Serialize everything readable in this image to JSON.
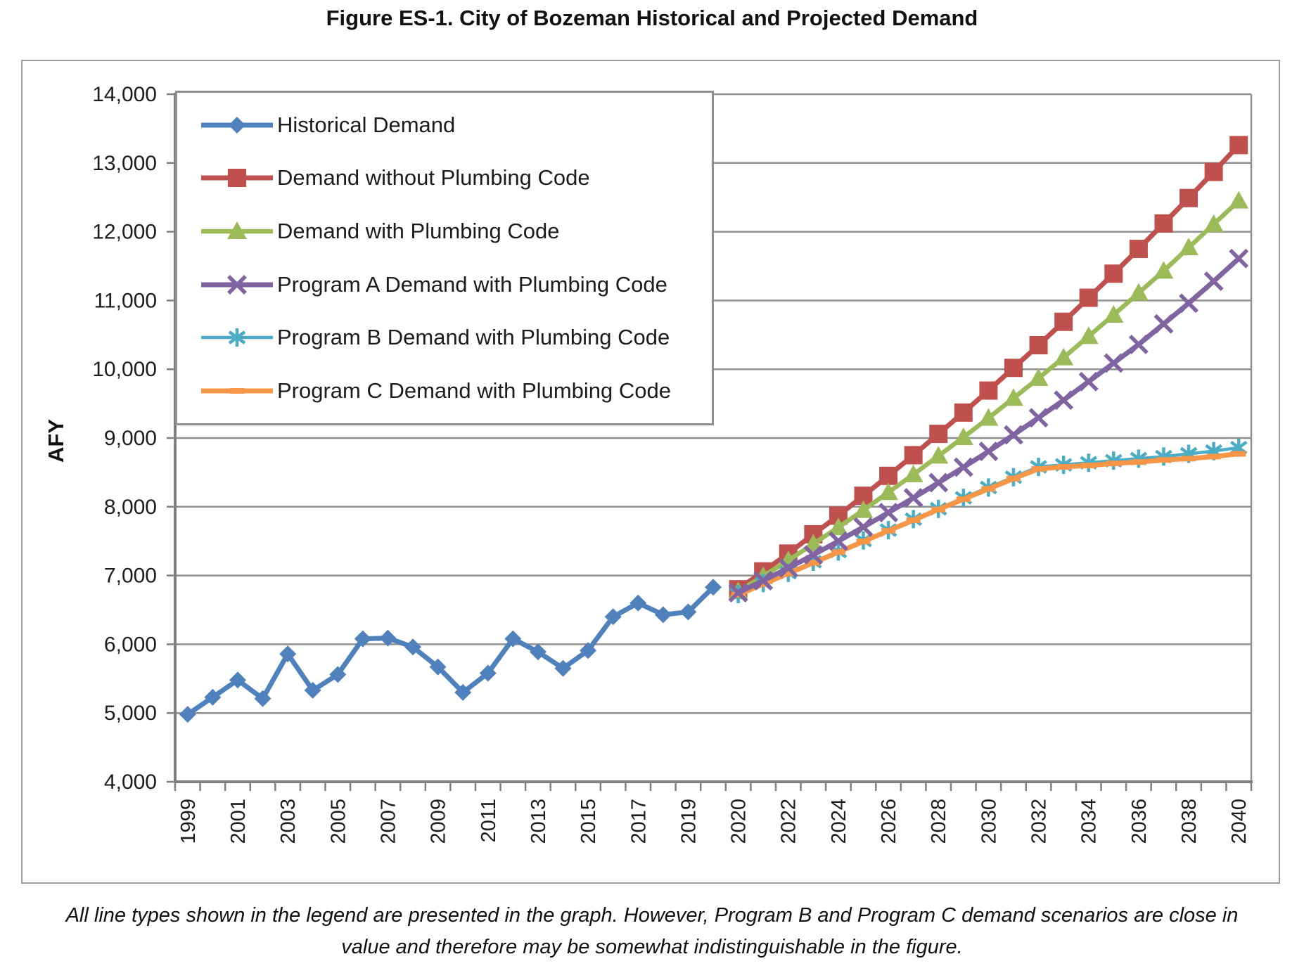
{
  "page": {
    "title": "Figure ES-1. City of Bozeman Historical and Projected Demand",
    "caption": "All line types shown in the legend are presented in the graph. However, Program B and Program C demand scenarios are close in value and therefore may be somewhat indistinguishable in the figure."
  },
  "chart_data": {
    "type": "line",
    "title": "Figure ES-1. City of Bozeman Historical and Projected Demand",
    "xlabel": "",
    "ylabel": "AFY",
    "ylim": [
      4000,
      14000
    ],
    "ytick_step": 1000,
    "y_tick_labels": [
      "4,000",
      "5,000",
      "6,000",
      "7,000",
      "8,000",
      "9,000",
      "10,000",
      "11,000",
      "12,000",
      "13,000",
      "14,000"
    ],
    "x_tick_labels": [
      "1999",
      "2001",
      "2003",
      "2005",
      "2007",
      "2009",
      "2011",
      "2013",
      "2015",
      "2017",
      "2019",
      "2020",
      "2022",
      "2024",
      "2026",
      "2028",
      "2030",
      "2032",
      "2034",
      "2036",
      "2038",
      "2040"
    ],
    "x_total_categories": 43,
    "projection_start_index": 22,
    "grid": "horizontal",
    "legend_position": "top-left",
    "series": [
      {
        "name": "Historical Demand",
        "color": "#4F81BD",
        "marker": "diamond",
        "start_index": 0,
        "years": [
          1999,
          2000,
          2001,
          2002,
          2003,
          2004,
          2005,
          2006,
          2007,
          2008,
          2009,
          2010,
          2011,
          2012,
          2013,
          2014,
          2015,
          2016,
          2017,
          2018,
          2019,
          2020
        ],
        "values": [
          4980,
          5230,
          5480,
          5210,
          5860,
          5330,
          5560,
          6080,
          6090,
          5960,
          5670,
          5300,
          5580,
          6080,
          5890,
          5650,
          5910,
          6400,
          6600,
          6430,
          6470,
          6830
        ]
      },
      {
        "name": "Demand without Plumbing Code",
        "color": "#C0504D",
        "marker": "square",
        "start_index": 22,
        "years": [
          2020,
          2021,
          2022,
          2023,
          2024,
          2025,
          2026,
          2027,
          2028,
          2029,
          2030,
          2031,
          2032,
          2033,
          2034,
          2035,
          2036,
          2037,
          2038,
          2039,
          2040
        ],
        "values": [
          6800,
          7060,
          7320,
          7600,
          7870,
          8160,
          8450,
          8750,
          9060,
          9370,
          9690,
          10020,
          10350,
          10690,
          11040,
          11390,
          11750,
          12120,
          12490,
          12870,
          13260
        ]
      },
      {
        "name": "Demand with Plumbing Code",
        "color": "#9BBB59",
        "marker": "triangle",
        "start_index": 22,
        "years": [
          2020,
          2021,
          2022,
          2023,
          2024,
          2025,
          2026,
          2027,
          2028,
          2029,
          2030,
          2031,
          2032,
          2033,
          2034,
          2035,
          2036,
          2037,
          2038,
          2039,
          2040
        ],
        "values": [
          6770,
          6990,
          7220,
          7460,
          7700,
          7950,
          8210,
          8470,
          8740,
          9010,
          9290,
          9580,
          9870,
          10170,
          10480,
          10790,
          11110,
          11430,
          11770,
          12110,
          12450
        ]
      },
      {
        "name": "Program A Demand with Plumbing Code",
        "color": "#8064A2",
        "marker": "x",
        "start_index": 22,
        "years": [
          2020,
          2021,
          2022,
          2023,
          2024,
          2025,
          2026,
          2027,
          2028,
          2029,
          2030,
          2031,
          2032,
          2033,
          2034,
          2035,
          2036,
          2037,
          2038,
          2039,
          2040
        ],
        "values": [
          6750,
          6925,
          7110,
          7300,
          7500,
          7705,
          7915,
          8130,
          8350,
          8575,
          8805,
          9045,
          9295,
          9550,
          9820,
          10090,
          10360,
          10660,
          10960,
          11280,
          11610
        ]
      },
      {
        "name": "Program B Demand with Plumbing Code",
        "color": "#4BACC6",
        "marker": "asterisk",
        "start_index": 22,
        "years": [
          2020,
          2021,
          2022,
          2023,
          2024,
          2025,
          2026,
          2027,
          2028,
          2029,
          2030,
          2031,
          2032,
          2033,
          2034,
          2035,
          2036,
          2037,
          2038,
          2039,
          2040
        ],
        "values": [
          6730,
          6890,
          7040,
          7200,
          7350,
          7510,
          7660,
          7820,
          7970,
          8130,
          8280,
          8430,
          8580,
          8610,
          8640,
          8670,
          8700,
          8730,
          8770,
          8810,
          8860
        ]
      },
      {
        "name": "Program C Demand with Plumbing Code",
        "color": "#F79646",
        "marker": "dash",
        "start_index": 22,
        "years": [
          2020,
          2021,
          2022,
          2023,
          2024,
          2025,
          2026,
          2027,
          2028,
          2029,
          2030,
          2031,
          2032,
          2033,
          2034,
          2035,
          2036,
          2037,
          2038,
          2039,
          2040
        ],
        "values": [
          6720,
          6875,
          7030,
          7185,
          7340,
          7495,
          7650,
          7805,
          7960,
          8110,
          8260,
          8410,
          8550,
          8580,
          8600,
          8630,
          8650,
          8680,
          8700,
          8730,
          8770
        ]
      }
    ]
  }
}
